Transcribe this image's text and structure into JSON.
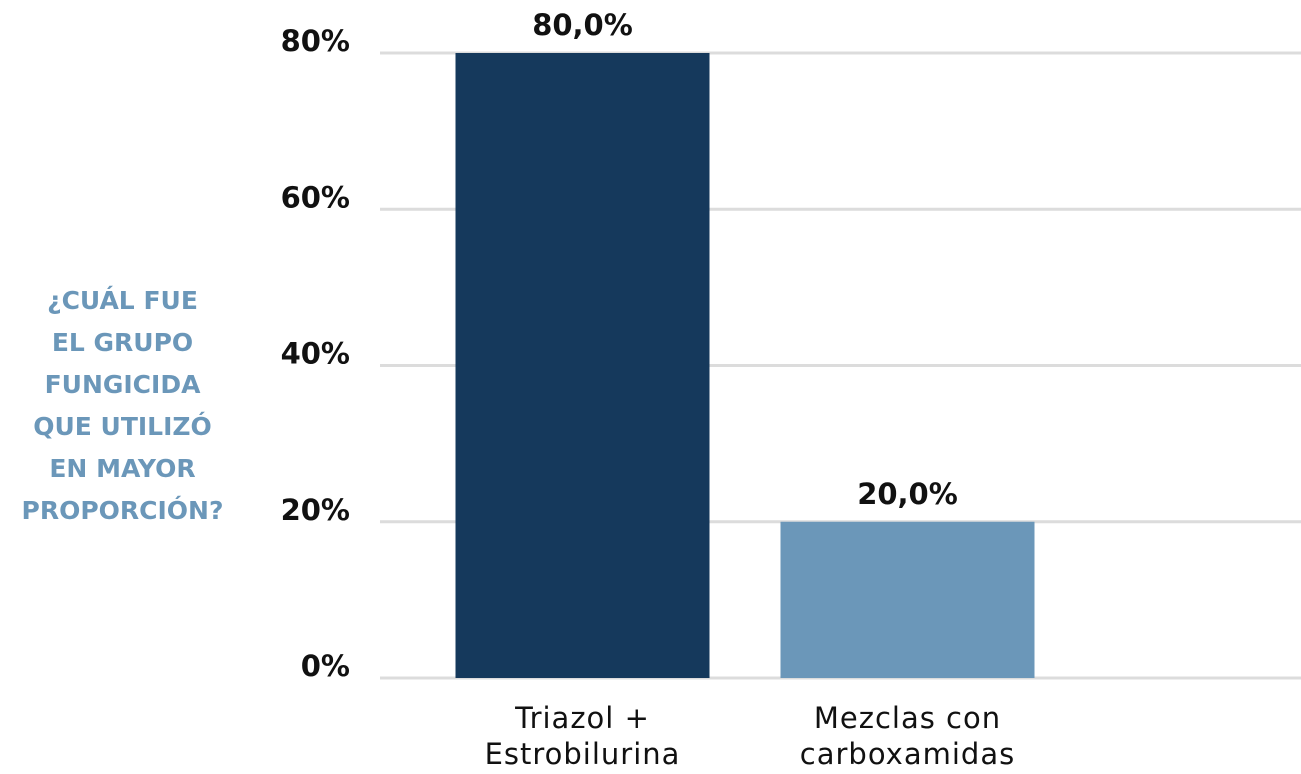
{
  "chart_data": {
    "type": "bar",
    "ylabel": [
      "¿CUÁL FUE",
      "EL GRUPO",
      "FUNGICIDA",
      "QUE UTILIZÓ",
      "EN MAYOR",
      "PROPORCIÓN?"
    ],
    "categories": [
      "Triazol + Estrobilurina",
      "Mezclas con carboxamidas"
    ],
    "values": [
      80,
      20
    ],
    "value_labels": [
      "80,0%",
      "20,0%"
    ],
    "colors": [
      "#15395c",
      "#6b97b9"
    ],
    "ylim": [
      0,
      80
    ],
    "yticks": [
      {
        "value": 0,
        "label": "0%"
      },
      {
        "value": 20,
        "label": "20%"
      },
      {
        "value": 40,
        "label": "40%"
      },
      {
        "value": 60,
        "label": "60%"
      },
      {
        "value": 80,
        "label": "80%"
      }
    ],
    "grid": true
  }
}
